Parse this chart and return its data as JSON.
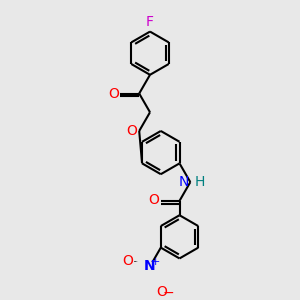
{
  "background_color": "#e8e8e8",
  "bond_color": "#000000",
  "bond_width": 1.5,
  "atom_colors": {
    "F": "#cc00cc",
    "O": "#ff0000",
    "N": "#0000ff",
    "H": "#008080",
    "C": "#000000"
  },
  "figsize": [
    3.0,
    3.0
  ],
  "dpi": 100,
  "xlim": [
    0,
    10
  ],
  "ylim": [
    -1,
    17
  ]
}
